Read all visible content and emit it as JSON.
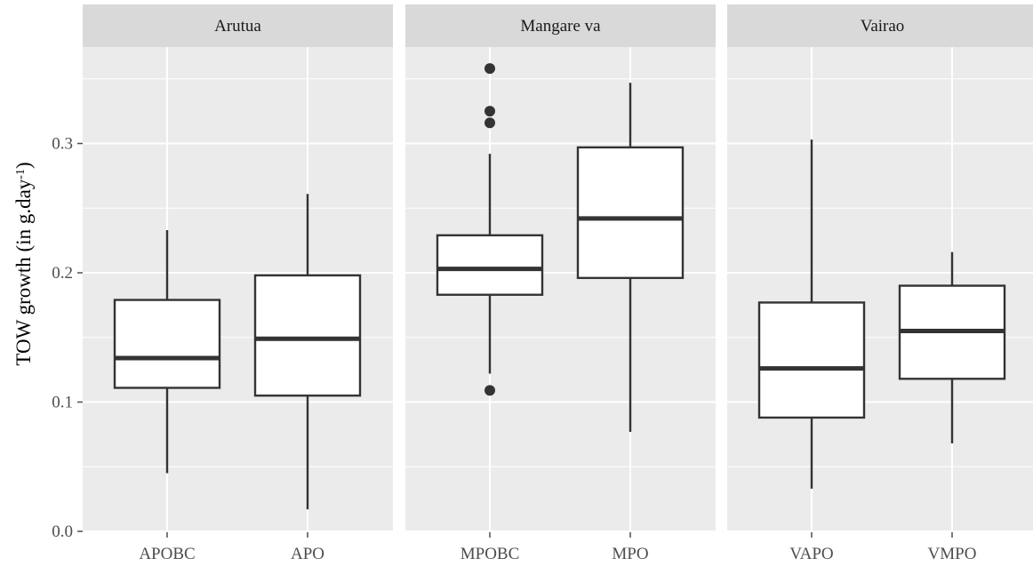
{
  "chart_data": {
    "type": "boxplot",
    "ylabel": "TOW growth (in g.day",
    "ylabel_superscript": "-1",
    "ylabel_suffix": ")",
    "ylim": [
      0.0,
      0.36
    ],
    "yticks": [
      0.0,
      0.1,
      0.2,
      0.3
    ],
    "ytick_labels": [
      "0.0",
      "0.1",
      "0.2",
      "0.3"
    ],
    "grid": true,
    "colors": {
      "panel_bg": "#ebebeb",
      "strip_bg": "#d9d9d9",
      "grid": "#ffffff",
      "box_fill": "#ffffff",
      "box_line": "#333333",
      "tick_text": "#4d4d4d"
    },
    "panels": [
      {
        "title": "Arutua",
        "boxes": [
          {
            "label": "APOBC",
            "lower_whisker": 0.045,
            "q1": 0.111,
            "median": 0.134,
            "q3": 0.179,
            "upper_whisker": 0.233,
            "outliers": []
          },
          {
            "label": "APO",
            "lower_whisker": 0.017,
            "q1": 0.105,
            "median": 0.149,
            "q3": 0.198,
            "upper_whisker": 0.261,
            "outliers": []
          }
        ]
      },
      {
        "title": "Mangare va",
        "boxes": [
          {
            "label": "MPOBC",
            "lower_whisker": 0.122,
            "q1": 0.183,
            "median": 0.203,
            "q3": 0.229,
            "upper_whisker": 0.292,
            "outliers": [
              0.358,
              0.325,
              0.316,
              0.109
            ]
          },
          {
            "label": "MPO",
            "lower_whisker": 0.077,
            "q1": 0.196,
            "median": 0.242,
            "q3": 0.297,
            "upper_whisker": 0.347,
            "outliers": []
          }
        ]
      },
      {
        "title": "Vairao",
        "boxes": [
          {
            "label": "VAPO",
            "lower_whisker": 0.033,
            "q1": 0.088,
            "median": 0.126,
            "q3": 0.177,
            "upper_whisker": 0.303,
            "outliers": []
          },
          {
            "label": "VMPO",
            "lower_whisker": 0.068,
            "q1": 0.118,
            "median": 0.155,
            "q3": 0.19,
            "upper_whisker": 0.216,
            "outliers": []
          }
        ]
      }
    ]
  }
}
